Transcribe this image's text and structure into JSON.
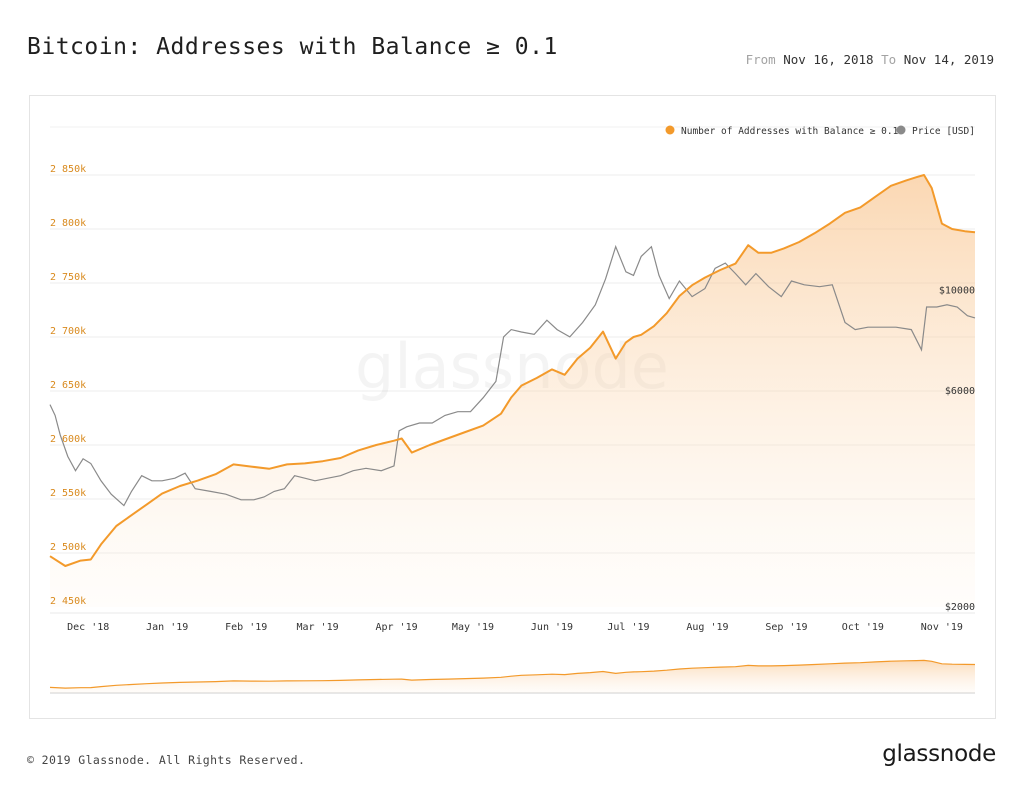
{
  "header": {
    "title": "Bitcoin: Addresses with Balance ≥ 0.1",
    "from_label": "From",
    "from_date": "Nov 16, 2018",
    "to_label": "To",
    "to_date": "Nov 14, 2019"
  },
  "footer": {
    "copyright": "© 2019 Glassnode. All Rights Reserved.",
    "logo_text": "glassnode"
  },
  "watermark": "glassnode",
  "colors": {
    "addresses": "#f39a2b",
    "addresses_label": "#d98a1e",
    "price": "#8a8a8a",
    "fill_top": "#f7b774",
    "grid": "#eeeeee"
  },
  "chart_data": {
    "type": "line",
    "x_start": "2018-11-16",
    "x_end": "2019-11-14",
    "xticks": [
      {
        "date": "2018-12-01",
        "label": "Dec '18"
      },
      {
        "date": "2019-01-01",
        "label": "Jan '19"
      },
      {
        "date": "2019-02-01",
        "label": "Feb '19"
      },
      {
        "date": "2019-03-01",
        "label": "Mar '19"
      },
      {
        "date": "2019-04-01",
        "label": "Apr '19"
      },
      {
        "date": "2019-05-01",
        "label": "May '19"
      },
      {
        "date": "2019-06-01",
        "label": "Jun '19"
      },
      {
        "date": "2019-07-01",
        "label": "Jul '19"
      },
      {
        "date": "2019-08-01",
        "label": "Aug '19"
      },
      {
        "date": "2019-09-01",
        "label": "Sep '19"
      },
      {
        "date": "2019-10-01",
        "label": "Oct '19"
      },
      {
        "date": "2019-11-01",
        "label": "Nov '19"
      }
    ],
    "y_left": {
      "ylim": [
        2450000,
        2850000
      ],
      "ticks": [
        2450000,
        2500000,
        2550000,
        2600000,
        2650000,
        2700000,
        2750000,
        2800000,
        2850000
      ],
      "tick_labels": [
        "2 450k",
        "2 500k",
        "2 550k",
        "2 600k",
        "2 650k",
        "2 700k",
        "2 750k",
        "2 800k",
        "2 850k"
      ]
    },
    "y_right": {
      "scale": "log",
      "ylim": [
        2000,
        18000
      ],
      "ticks": [
        2000,
        6000,
        10000
      ],
      "tick_labels": [
        "$2000",
        "$6000",
        "$10000"
      ]
    },
    "legend": {
      "position": "top-right",
      "entries": [
        "Number of Addresses with Balance ≥ 0.1",
        "Price [USD]"
      ]
    },
    "series": [
      {
        "name": "Number of Addresses with Balance ≥ 0.1",
        "axis": "left",
        "x": [
          "2018-11-16",
          "2018-11-22",
          "2018-11-28",
          "2018-12-02",
          "2018-12-06",
          "2018-12-12",
          "2018-12-18",
          "2018-12-24",
          "2018-12-30",
          "2019-01-06",
          "2019-01-13",
          "2019-01-20",
          "2019-01-27",
          "2019-02-03",
          "2019-02-10",
          "2019-02-17",
          "2019-02-24",
          "2019-03-03",
          "2019-03-10",
          "2019-03-17",
          "2019-03-24",
          "2019-03-31",
          "2019-04-03",
          "2019-04-07",
          "2019-04-14",
          "2019-04-21",
          "2019-04-28",
          "2019-05-05",
          "2019-05-12",
          "2019-05-16",
          "2019-05-20",
          "2019-05-26",
          "2019-06-01",
          "2019-06-06",
          "2019-06-11",
          "2019-06-16",
          "2019-06-21",
          "2019-06-26",
          "2019-06-30",
          "2019-07-03",
          "2019-07-06",
          "2019-07-11",
          "2019-07-16",
          "2019-07-21",
          "2019-07-26",
          "2019-07-31",
          "2019-08-06",
          "2019-08-12",
          "2019-08-17",
          "2019-08-21",
          "2019-08-26",
          "2019-08-31",
          "2019-09-06",
          "2019-09-12",
          "2019-09-18",
          "2019-09-24",
          "2019-09-30",
          "2019-10-06",
          "2019-10-12",
          "2019-10-18",
          "2019-10-22",
          "2019-10-25",
          "2019-10-28",
          "2019-11-01",
          "2019-11-05",
          "2019-11-10",
          "2019-11-14"
        ],
        "values": [
          2497000,
          2488000,
          2493000,
          2494000,
          2508000,
          2525000,
          2535000,
          2545000,
          2555000,
          2562000,
          2567000,
          2573000,
          2582000,
          2580000,
          2578000,
          2582000,
          2583000,
          2585000,
          2588000,
          2595000,
          2600000,
          2604000,
          2606000,
          2593000,
          2600000,
          2606000,
          2612000,
          2618000,
          2629000,
          2644000,
          2655000,
          2662000,
          2670000,
          2665000,
          2680000,
          2690000,
          2705000,
          2680000,
          2695000,
          2700000,
          2702000,
          2710000,
          2722000,
          2738000,
          2748000,
          2755000,
          2762000,
          2768000,
          2785000,
          2778000,
          2778000,
          2782000,
          2788000,
          2796000,
          2805000,
          2815000,
          2820000,
          2830000,
          2840000,
          2845000,
          2848000,
          2850000,
          2838000,
          2805000,
          2800000,
          2798000,
          2797000
        ]
      },
      {
        "name": "Price [USD]",
        "axis": "right",
        "x": [
          "2018-11-16",
          "2018-11-18",
          "2018-11-20",
          "2018-11-23",
          "2018-11-26",
          "2018-11-29",
          "2018-12-02",
          "2018-12-06",
          "2018-12-10",
          "2018-12-15",
          "2018-12-18",
          "2018-12-22",
          "2018-12-26",
          "2018-12-30",
          "2019-01-04",
          "2019-01-08",
          "2019-01-12",
          "2019-01-18",
          "2019-01-24",
          "2019-01-30",
          "2019-02-04",
          "2019-02-08",
          "2019-02-12",
          "2019-02-16",
          "2019-02-20",
          "2019-02-24",
          "2019-02-28",
          "2019-03-05",
          "2019-03-10",
          "2019-03-15",
          "2019-03-20",
          "2019-03-26",
          "2019-03-31",
          "2019-04-02",
          "2019-04-05",
          "2019-04-10",
          "2019-04-15",
          "2019-04-20",
          "2019-04-25",
          "2019-04-30",
          "2019-05-05",
          "2019-05-10",
          "2019-05-13",
          "2019-05-16",
          "2019-05-20",
          "2019-05-25",
          "2019-05-30",
          "2019-06-03",
          "2019-06-08",
          "2019-06-13",
          "2019-06-18",
          "2019-06-22",
          "2019-06-26",
          "2019-06-30",
          "2019-07-03",
          "2019-07-06",
          "2019-07-10",
          "2019-07-13",
          "2019-07-17",
          "2019-07-21",
          "2019-07-26",
          "2019-07-31",
          "2019-08-04",
          "2019-08-08",
          "2019-08-12",
          "2019-08-16",
          "2019-08-20",
          "2019-08-25",
          "2019-08-30",
          "2019-09-03",
          "2019-09-08",
          "2019-09-14",
          "2019-09-19",
          "2019-09-24",
          "2019-09-28",
          "2019-10-03",
          "2019-10-08",
          "2019-10-14",
          "2019-10-20",
          "2019-10-24",
          "2019-10-26",
          "2019-10-30",
          "2019-11-03",
          "2019-11-07",
          "2019-11-11",
          "2019-11-14"
        ],
        "values": [
          5600,
          5300,
          4800,
          4300,
          4000,
          4250,
          4150,
          3800,
          3550,
          3350,
          3600,
          3900,
          3800,
          3800,
          3850,
          3950,
          3650,
          3600,
          3550,
          3450,
          3450,
          3500,
          3600,
          3650,
          3900,
          3850,
          3800,
          3850,
          3900,
          4000,
          4050,
          4000,
          4100,
          4900,
          5000,
          5100,
          5100,
          5300,
          5400,
          5400,
          5800,
          6300,
          7900,
          8200,
          8100,
          8000,
          8600,
          8200,
          7900,
          8500,
          9300,
          10600,
          12500,
          11000,
          10800,
          11900,
          12500,
          10800,
          9600,
          10500,
          9700,
          10100,
          11200,
          11500,
          10900,
          10300,
          10900,
          10200,
          9700,
          10500,
          10300,
          10200,
          10300,
          8500,
          8200,
          8300,
          8300,
          8300,
          8200,
          7400,
          9200,
          9200,
          9300,
          9200,
          8800,
          8700
        ]
      }
    ]
  }
}
